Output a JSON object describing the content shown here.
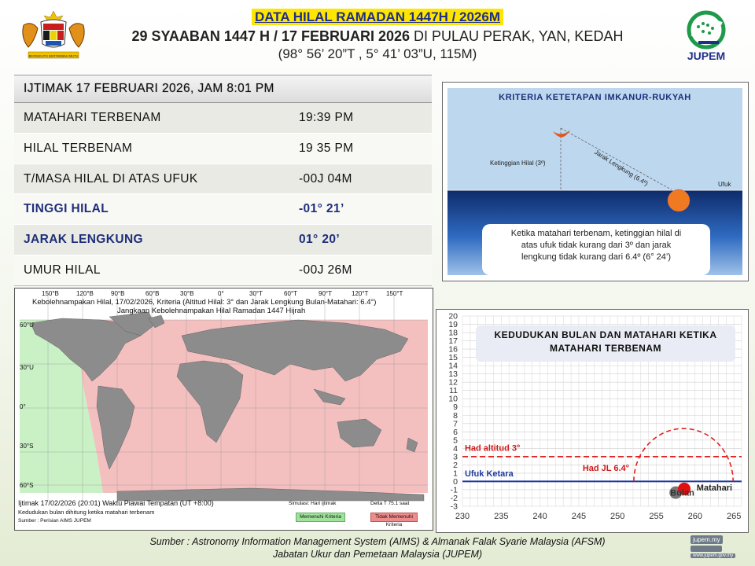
{
  "header": {
    "title": "DATA HILAL RAMADAN 1447H / 2026M",
    "subtitle_bold": "29 SYAABAN 1447 H / 17 FEBRUARI 2026",
    "subtitle_rest": " DI PULAU PERAK, YAN, KEDAH",
    "coordinates": "(98° 56’ 20”T , 5° 41’ 03”U, 115M)",
    "logo_right_text": "JUPEM",
    "crest_motto": "BERSEKUTU BERTAMBAH MUTU"
  },
  "table": {
    "heading": "IJTIMAK 17 FEBRUARI  2026,  JAM 8:01 PM",
    "rows": [
      {
        "label": "MATAHARI  TERBENAM",
        "value": "19:39  PM"
      },
      {
        "label": "HILAL  TERBENAM",
        "value": "19  35  PM"
      },
      {
        "label": "T/MASA  HILAL  DI  ATAS  UFUK",
        "value": "-00J  04M"
      },
      {
        "label": "TINGGI  HILAL",
        "value": "-01°  21’"
      },
      {
        "label": "JARAK  LENGKUNG",
        "value": "01°  20’"
      },
      {
        "label": "UMUR  HILAL",
        "value": "-00J  26M"
      }
    ]
  },
  "criteria": {
    "title": "KRITERIA  KETETAPAN  IMKANUR-RUKYAH",
    "altitude_label": "Ketinggian Hilal (3º)",
    "arc_label": "Jarak Lengkung (6.4º)",
    "horizon_label": "Ufuk",
    "note_line1": "Ketika matahari terbenam, ketinggian hilal di",
    "note_line2": "atas ufuk tidak kurang dari 3º dan jarak",
    "note_line3": "lengkung tidak kurang dari 6.4º (6° 24’)"
  },
  "map": {
    "title_line1": "Kebolehnampakan Hilal, 17/02/2026, Kriteria (Altitud Hilal: 3° dan Jarak Lengkung Bulan-Matahari: 6.4°)",
    "title_line2": "Jangkaan Kebolehnampakan Hilal Ramadan 1447 Hijrah",
    "lon_ticks": [
      "150°B",
      "120°B",
      "90°B",
      "60°B",
      "30°B",
      "0°",
      "30°T",
      "60°T",
      "90°T",
      "120°T",
      "150°T"
    ],
    "lat_ticks": [
      "60°U",
      "30°U",
      "0°",
      "30°S",
      "60°S"
    ],
    "note_line1": "Ijtimak 17/02/2026 (20:01) Waktu Piawai Tempatan (UT +8:00)",
    "note_line2": "Kedudukan bulan dihitung ketika matahari terbenam",
    "note_line3": "Sumber : Perisian AIMS JUPEM",
    "sim_label": "Simulasi: Hari ijtimak",
    "delta_label": "Delta T 75.1 saat",
    "legend_green": "Memenuhi Kriteria",
    "legend_red": "Tidak Memenuhi Kriteria",
    "colors": {
      "meets": "#9fe39a",
      "fails": "#f0a6a6"
    }
  },
  "position_chart": {
    "title_line1": "KEDUDUKAN  BULAN DAN MATAHARI KETIKA",
    "title_line2": "MATAHARI TERBENAM",
    "label_alt": "Had altitud 3°",
    "label_jl": "Had JL 6.4°",
    "label_horizon": "Ufuk Ketara",
    "label_moon": "Bulan",
    "label_sun": "Matahari"
  },
  "chart_data": {
    "type": "scatter",
    "title": "KEDUDUKAN  BULAN DAN MATAHARI KETIKA MATAHARI TERBENAM",
    "x": [
      230,
      235,
      240,
      245,
      250,
      255,
      260,
      265
    ],
    "xlim": [
      230,
      266
    ],
    "ylim": [
      -3,
      20
    ],
    "yticks": [
      -3,
      -2,
      -1,
      0,
      1,
      2,
      3,
      4,
      5,
      6,
      7,
      8,
      9,
      10,
      11,
      12,
      13,
      14,
      15,
      16,
      17,
      18,
      19,
      20
    ],
    "grid": true,
    "series": [
      {
        "name": "Had altitud 3°",
        "type": "hline",
        "y": 3,
        "color": "#e02020"
      },
      {
        "name": "Ufuk Ketara",
        "type": "hline",
        "y": 0,
        "color": "#1f3a9f"
      },
      {
        "name": "Had JL 6.4°",
        "type": "circle",
        "center": [
          258.5,
          -0.5
        ],
        "radius": 6.4,
        "color": "#e02020"
      },
      {
        "name": "Bulan",
        "type": "point",
        "x": 257.5,
        "y": -1.35,
        "color": "#777777"
      },
      {
        "name": "Matahari",
        "type": "point",
        "x": 258.6,
        "y": -0.9,
        "color": "#e01010"
      }
    ]
  },
  "footer": {
    "source_line1": "Sumber : Astronomy  Information  Management  System  (AIMS)  &  Almanak  Falak  Syarie  Malaysia  (AFSM)",
    "source_line2": "Jabatan Ukur dan Pemetaan Malaysia (JUPEM)",
    "website": "jupem.my",
    "website2": "www.jupem.gov.my"
  }
}
